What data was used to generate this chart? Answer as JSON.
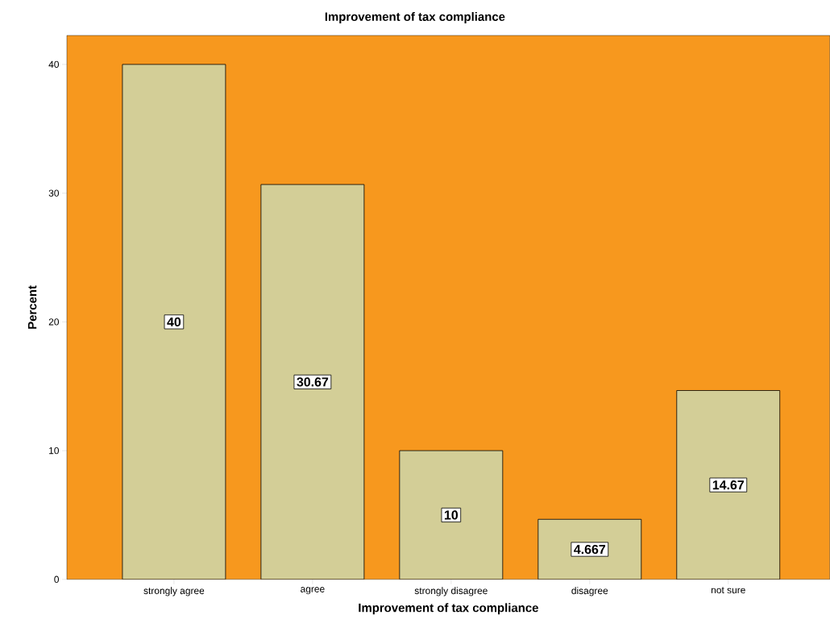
{
  "chart_data": {
    "type": "bar",
    "title": "Improvement of tax compliance",
    "xlabel": "Improvement of tax compliance",
    "ylabel": "Percent",
    "categories": [
      "strongly agree",
      "agree",
      "strongly disagree",
      "disagree",
      "not sure"
    ],
    "values": [
      40,
      30.67,
      10,
      4.667,
      14.67
    ],
    "color": "#d3ce97",
    "ylim": [
      0,
      42.25
    ],
    "yticks": [
      0,
      10,
      20,
      30,
      40
    ],
    "data_labels": true,
    "grid": false
  }
}
